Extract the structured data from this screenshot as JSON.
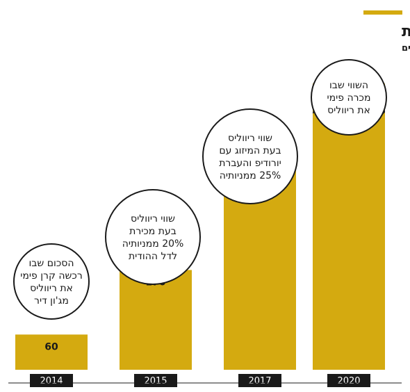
{
  "chart_data": {
    "type": "bar",
    "title": "משביחה ומוכרת",
    "subtitle": "שווי ריווליס טיפס מאז רכישתה על ידי קרן פימי, במיליוני דולרים",
    "categories": [
      "2014",
      "2015",
      "2017",
      "2020"
    ],
    "values": [
      60,
      170,
      360,
      450
    ],
    "value_labels": [
      "60",
      "170",
      "360",
      "430–450"
    ],
    "range_low": [
      null,
      null,
      null,
      430
    ],
    "ylim": [
      0,
      460
    ],
    "grid": false,
    "annotations": [
      [
        "הסכום שבו",
        "רכשה קרן פימי",
        "את ריווליס",
        "מג'ון דיר"
      ],
      [
        "שווי ריווליס",
        "בעת מכירת",
        "20% ממניותיה",
        "לדל ההודית"
      ],
      [
        "שווי ריווליס",
        "בעת המיזוג עם",
        "יורודיפ והעברת",
        "25% ממניותיה"
      ],
      [
        "השווי שבו",
        "מכרה פימי",
        "את ריווליס"
      ]
    ]
  },
  "colors": {
    "accent": "#d4aa10",
    "bar": "#d4aa10",
    "text": "#1a1a1a",
    "year_box": "#1a1a1a"
  }
}
